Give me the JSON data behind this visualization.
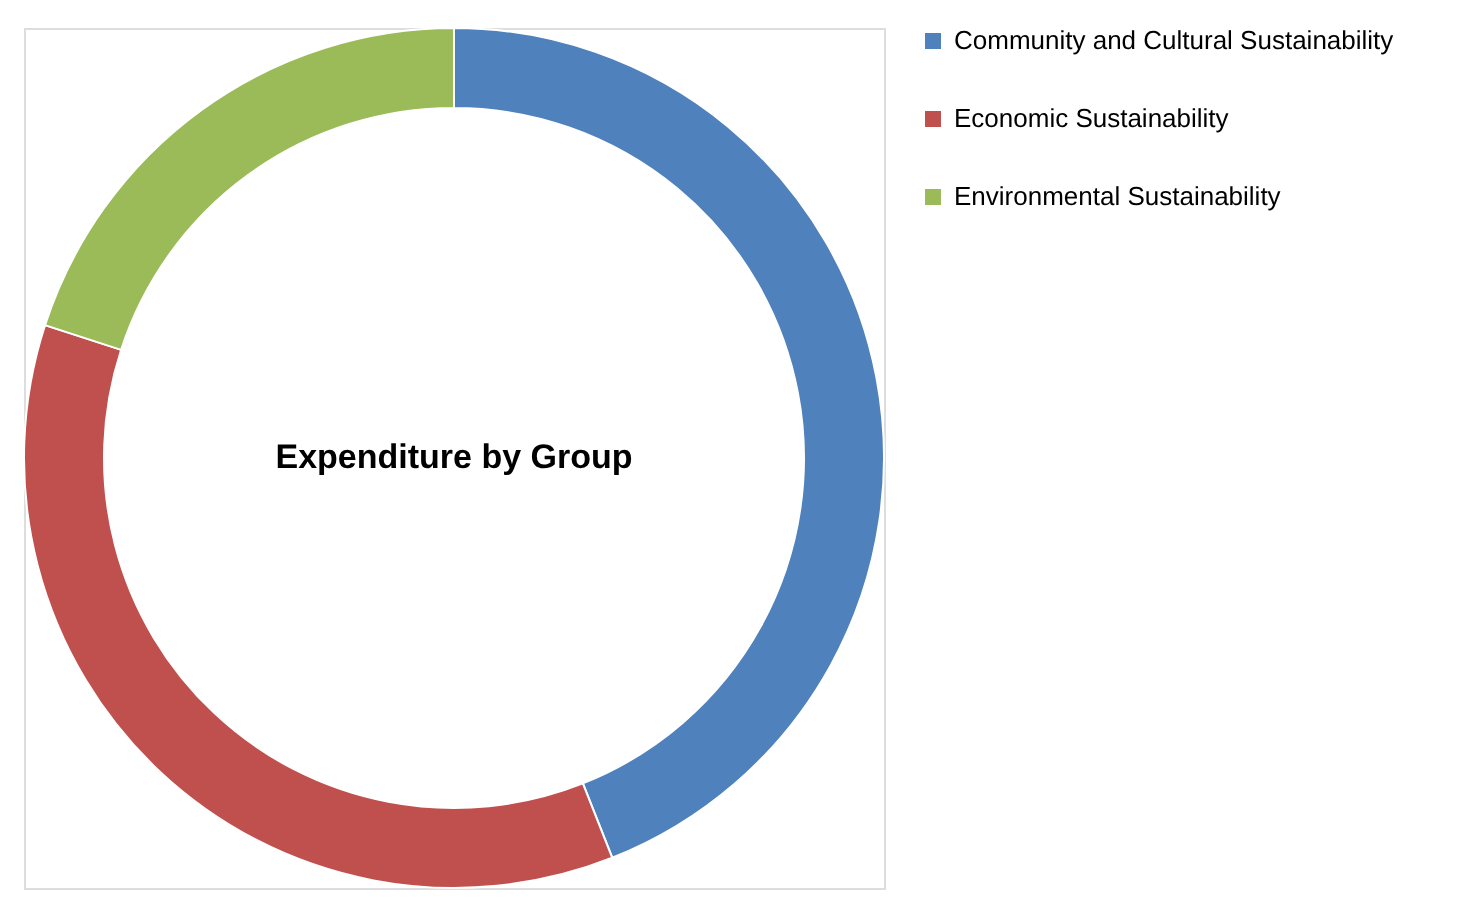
{
  "chart_data": {
    "type": "donut",
    "title": "Expenditure by Group",
    "categories": [
      "Community and Cultural Sustainability",
      "Economic Sustainability",
      "Environmental Sustainability"
    ],
    "values": [
      44,
      36,
      20
    ],
    "colors": [
      "#4f81bd",
      "#c0504d",
      "#9bbb59"
    ],
    "legend": "right"
  }
}
